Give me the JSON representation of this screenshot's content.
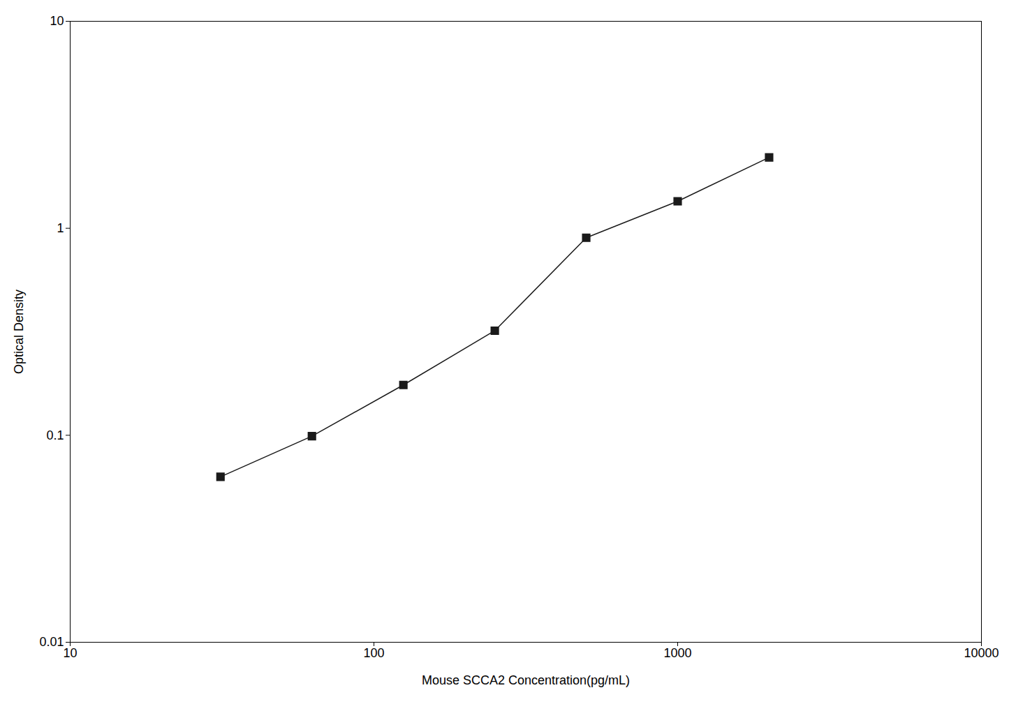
{
  "chart_data": {
    "type": "line",
    "x": [
      31.25,
      62.5,
      125,
      250,
      500,
      1000,
      2000
    ],
    "values": [
      0.063,
      0.099,
      0.175,
      0.32,
      0.9,
      1.35,
      2.2
    ],
    "xlabel": "Mouse SCCA2 Concentration(pg/mL)",
    "ylabel": "Optical Density",
    "xlim": [
      10,
      10000
    ],
    "ylim": [
      0.01,
      10
    ],
    "xticks": [
      10,
      100,
      1000,
      10000
    ],
    "yticks": [
      0.01,
      0.1,
      1,
      10
    ],
    "log": true,
    "marker": "square",
    "color": "#1a1a1a",
    "grid": false
  }
}
